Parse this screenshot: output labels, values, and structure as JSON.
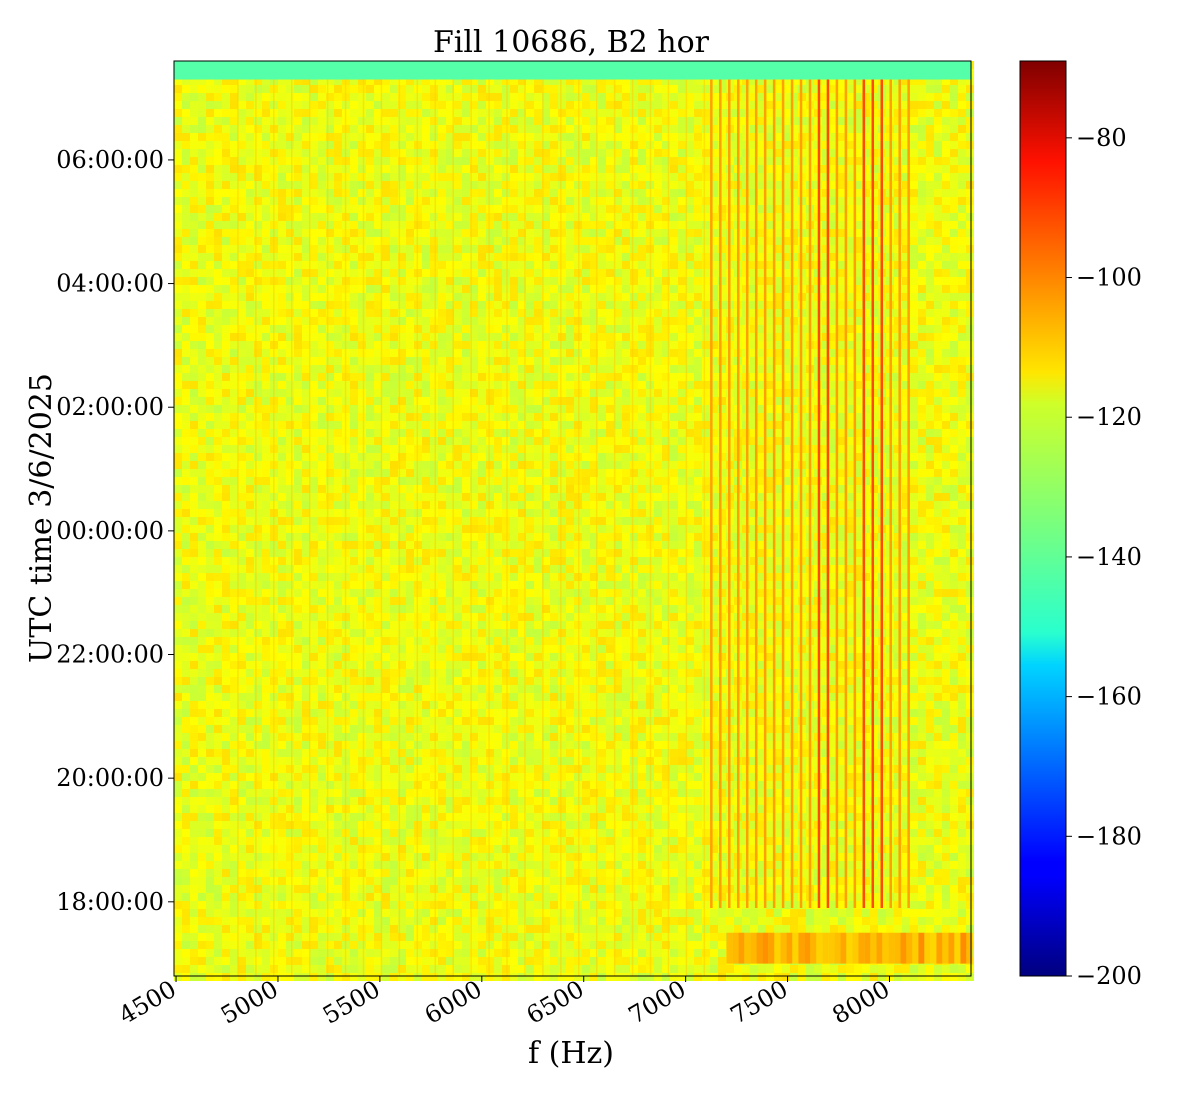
{
  "chart_data": {
    "type": "heatmap",
    "title": "Fill 10686, B2 hor",
    "xlabel": "f (Hz)",
    "ylabel": "UTC time 3/6/2025",
    "xlim": [
      4490,
      8400
    ],
    "x_ticks": [
      4500,
      5000,
      5500,
      6000,
      6500,
      7000,
      7500,
      8000
    ],
    "y_ticks": [
      "18:00:00",
      "20:00:00",
      "22:00:00",
      "00:00:00",
      "02:00:00",
      "04:00:00",
      "06:00:00"
    ],
    "y_tick_hours": [
      18,
      20,
      22,
      24,
      26,
      28,
      30
    ],
    "ylim_hours": [
      16.8,
      31.6
    ],
    "colorbar": {
      "min": -200,
      "max": -69,
      "ticks": [
        -80,
        -100,
        -120,
        -140,
        -160,
        -180,
        -200
      ],
      "colormap": "jet"
    },
    "background_level_db": -120,
    "line_features": {
      "spectral_line_range_hz": [
        7120,
        8100
      ],
      "spectral_line_spacing_hz": 44,
      "strongest_lines_hz": [
        7670,
        7700,
        7900,
        7930
      ],
      "lines_start_hour": 17.9,
      "lines_end_hour": 31.3,
      "weak_line_range_hz": [
        4800,
        7100
      ],
      "edge_band_level_db": -140
    }
  }
}
